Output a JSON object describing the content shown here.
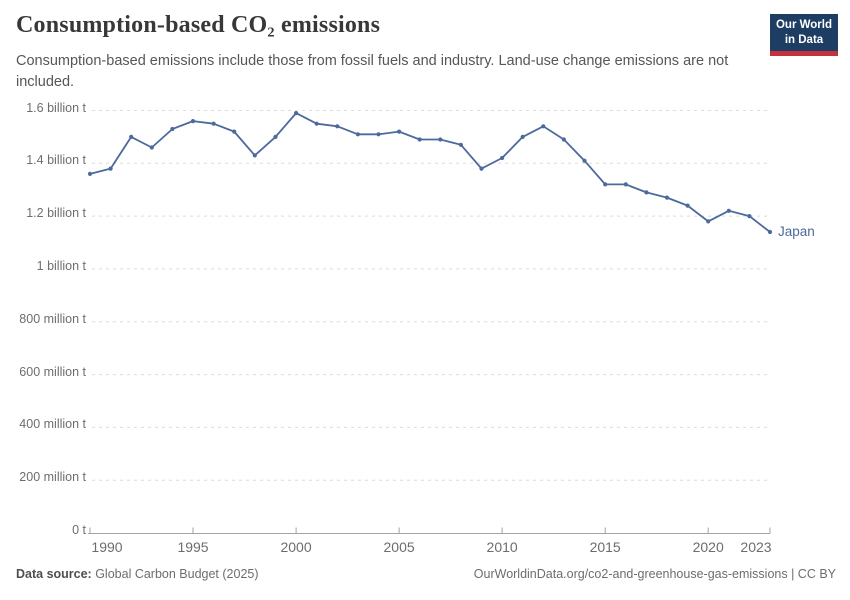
{
  "header": {
    "title": "Consumption-based CO₂ emissions",
    "subtitle": "Consumption-based emissions include those from fossil fuels and industry. Land-use change emissions are not included.",
    "logo": {
      "line1": "Our World",
      "line2": "in Data"
    }
  },
  "colors": {
    "line": "#4C6A9C",
    "entity_label": "#4C6A9C",
    "logo_bg": "#1D3D63",
    "logo_red": "#C4303B",
    "grid": "#DCDCDC",
    "axis": "#A3A3A3"
  },
  "chart_data": {
    "type": "line",
    "title": "Consumption-based CO₂ emissions",
    "xlabel": "",
    "ylabel": "",
    "unit": "tonnes of CO₂",
    "x": [
      1990,
      1991,
      1992,
      1993,
      1994,
      1995,
      1996,
      1997,
      1998,
      1999,
      2000,
      2001,
      2002,
      2003,
      2004,
      2005,
      2006,
      2007,
      2008,
      2009,
      2010,
      2011,
      2012,
      2013,
      2014,
      2015,
      2016,
      2017,
      2018,
      2019,
      2020,
      2021,
      2022,
      2023
    ],
    "series": [
      {
        "name": "Japan",
        "unit": "billion t",
        "values": [
          1.36,
          1.38,
          1.5,
          1.46,
          1.53,
          1.56,
          1.55,
          1.52,
          1.43,
          1.5,
          1.59,
          1.55,
          1.54,
          1.51,
          1.51,
          1.52,
          1.49,
          1.49,
          1.47,
          1.38,
          1.42,
          1.5,
          1.54,
          1.49,
          1.41,
          1.32,
          1.32,
          1.29,
          1.27,
          1.24,
          1.18,
          1.22,
          1.2,
          1.14
        ]
      }
    ],
    "ylim": [
      0,
      1.6
    ],
    "grid": "horizontal-dashed",
    "legend": "inline-end-label",
    "y_ticks": [
      {
        "value": 1.6,
        "label": "1.6 billion t"
      },
      {
        "value": 1.4,
        "label": "1.4 billion t"
      },
      {
        "value": 1.2,
        "label": "1.2 billion t"
      },
      {
        "value": 1.0,
        "label": "1 billion t"
      },
      {
        "value": 0.8,
        "label": "800 million t"
      },
      {
        "value": 0.6,
        "label": "600 million t"
      },
      {
        "value": 0.4,
        "label": "400 million t"
      },
      {
        "value": 0.2,
        "label": "200 million t"
      },
      {
        "value": 0,
        "label": "0 t"
      }
    ],
    "x_ticks": [
      {
        "value": 1990,
        "label": "1990"
      },
      {
        "value": 1995,
        "label": "1995"
      },
      {
        "value": 2000,
        "label": "2000"
      },
      {
        "value": 2005,
        "label": "2005"
      },
      {
        "value": 2010,
        "label": "2010"
      },
      {
        "value": 2015,
        "label": "2015"
      },
      {
        "value": 2020,
        "label": "2020"
      },
      {
        "value": 2023,
        "label": "2023"
      }
    ]
  },
  "footer": {
    "datasource_label": "Data source:",
    "datasource_value": " Global Carbon Budget (2025)",
    "link": "OurWorldinData.org/co2-and-greenhouse-gas-emissions | CC BY"
  }
}
